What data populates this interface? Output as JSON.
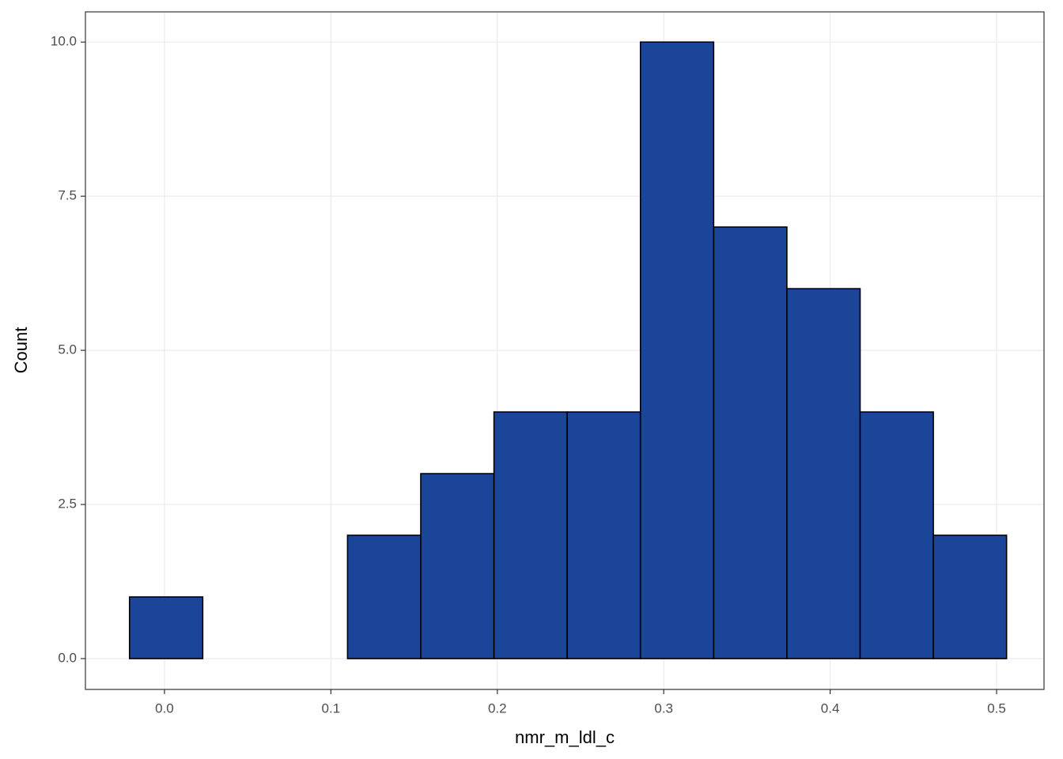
{
  "chart_data": {
    "type": "histogram",
    "x_label": "nmr_m_ldl_c",
    "y_label": "Count",
    "bins": [
      -0.021,
      0.023,
      0.067,
      0.11,
      0.154,
      0.198,
      0.242,
      0.286,
      0.33,
      0.374,
      0.418,
      0.462,
      0.506
    ],
    "values": [
      1,
      0,
      0,
      2,
      3,
      4,
      4,
      10,
      7,
      6,
      4,
      2
    ],
    "color": "#1a4599",
    "edge_color": "#000000",
    "xlim": [
      -0.0475,
      0.5285
    ],
    "ylim": [
      -0.5,
      10.49
    ],
    "xticks": [
      {
        "value": 0,
        "label": "0.0"
      },
      0.1,
      0.2,
      0.3,
      0.4,
      0.5
    ],
    "yticks": [
      {
        "value": 0,
        "label": "0.0"
      },
      2.5,
      {
        "value": 5,
        "label": "5.0"
      },
      7.5,
      {
        "value": 10,
        "label": "10.0"
      }
    ],
    "grid": true
  }
}
